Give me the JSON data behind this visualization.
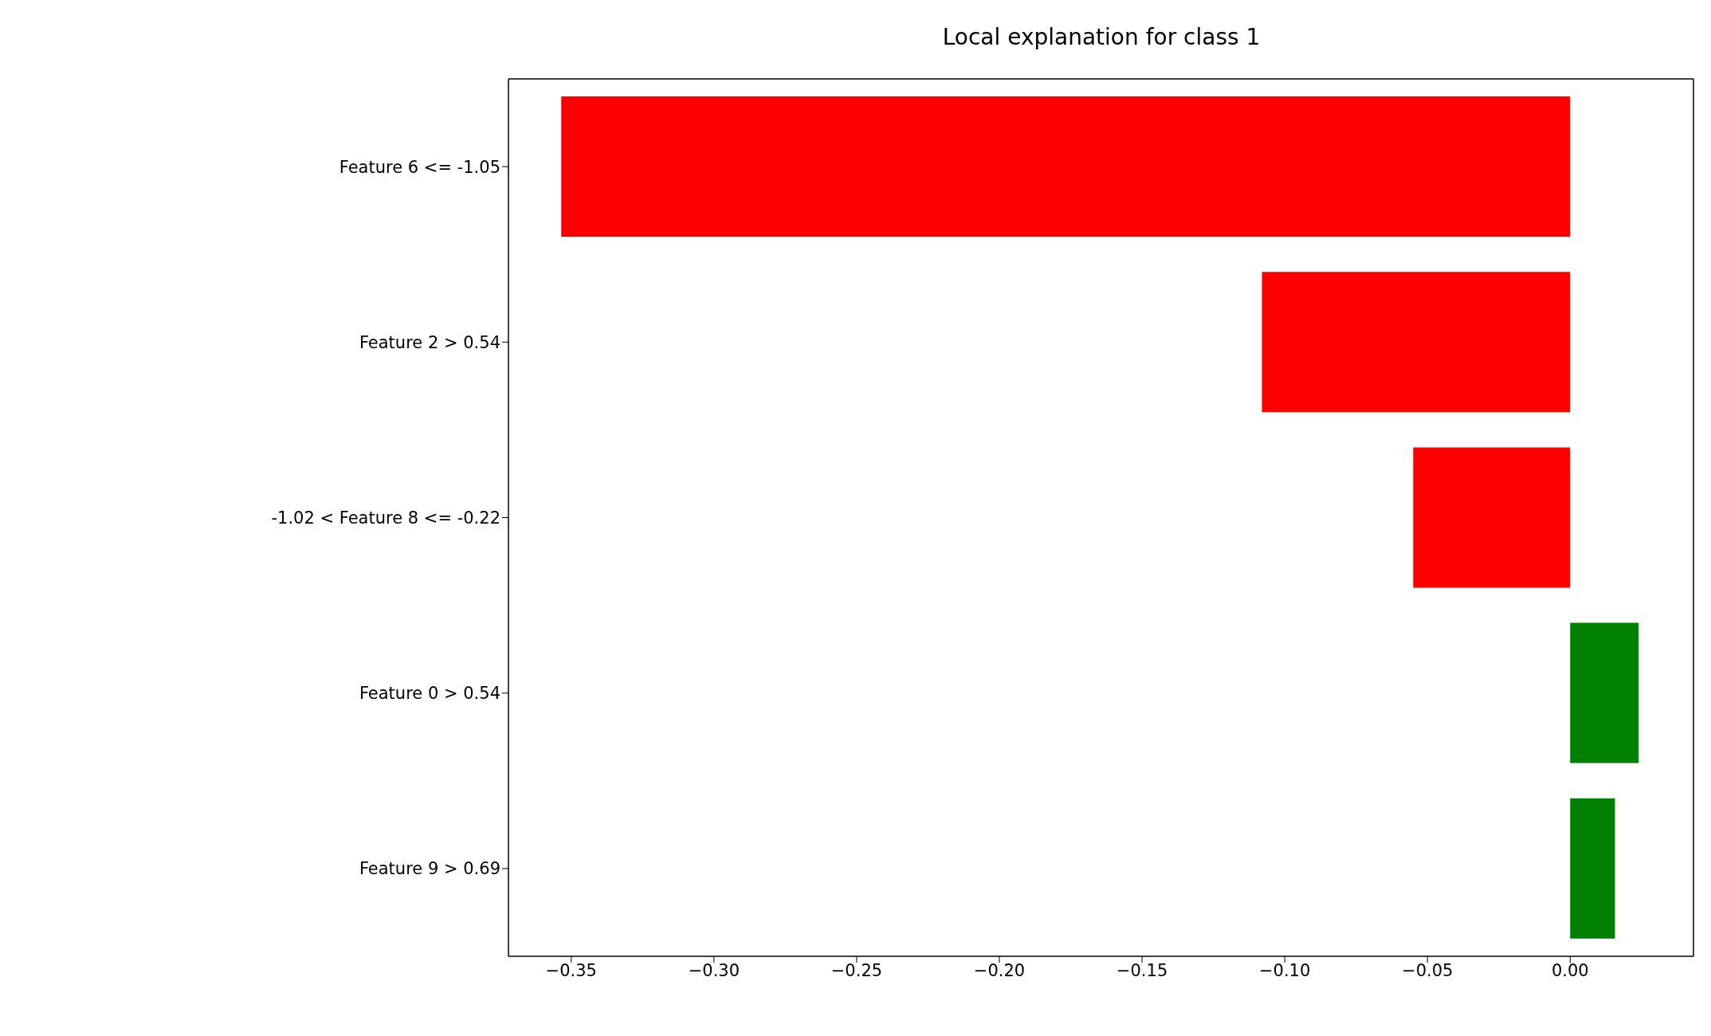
{
  "chart_data": {
    "type": "bar",
    "orientation": "horizontal",
    "title": "Local explanation for class 1",
    "categories": [
      "Feature 6 <= -1.05",
      "Feature 2 > 0.54",
      "-1.02 < Feature 8 <= -0.22",
      "Feature 0 > 0.54",
      "Feature 9 > 0.69"
    ],
    "values": [
      -0.3535,
      -0.108,
      -0.055,
      0.024,
      0.0157
    ],
    "colors": [
      "#ff0000",
      "#ff0000",
      "#ff0000",
      "#008000",
      "#008000"
    ],
    "xlim": [
      -0.372,
      0.0432
    ],
    "xticks": [
      {
        "value": -0.35,
        "label": "−0.35"
      },
      {
        "value": -0.3,
        "label": "−0.30"
      },
      {
        "value": -0.25,
        "label": "−0.25"
      },
      {
        "value": -0.2,
        "label": "−0.20"
      },
      {
        "value": -0.15,
        "label": "−0.15"
      },
      {
        "value": -0.1,
        "label": "−0.10"
      },
      {
        "value": -0.05,
        "label": "−0.05"
      },
      {
        "value": 0,
        "label": "0.00"
      }
    ],
    "grid": false,
    "legend": false
  }
}
